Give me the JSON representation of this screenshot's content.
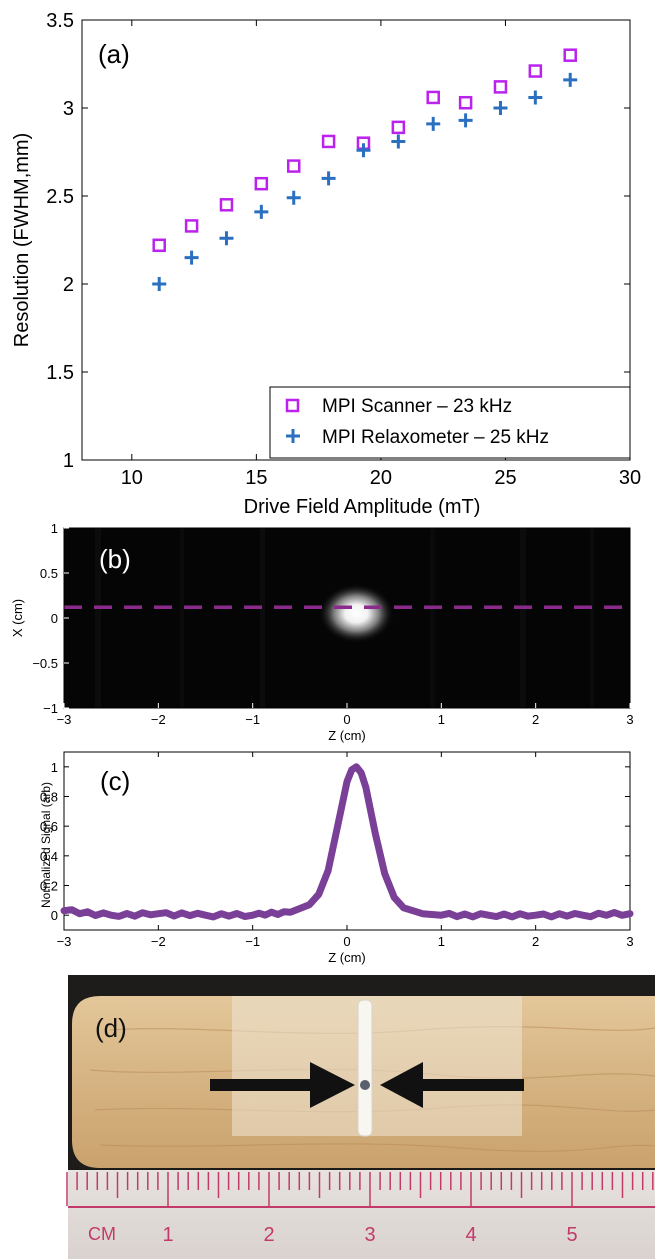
{
  "chart_data": [
    {
      "panel": "(a)",
      "type": "scatter",
      "xlabel": "Drive Field Amplitude (mT)",
      "ylabel": "Resolution (FWHM,mm)",
      "xlim": [
        8,
        30
      ],
      "ylim": [
        1,
        3.5
      ],
      "x_ticks": [
        "10",
        "15",
        "20",
        "25",
        "30"
      ],
      "y_ticks": [
        "1",
        "1.5",
        "2",
        "2.5",
        "3",
        "3.5"
      ],
      "legend_position": "bottom-right",
      "series": [
        {
          "name": "MPI Scanner – 23 kHz",
          "marker": "square",
          "color": "#bb22ee",
          "x": [
            11.1,
            12.4,
            13.8,
            15.2,
            16.5,
            17.9,
            19.3,
            20.7,
            22.1,
            23.4,
            24.8,
            26.2,
            27.6
          ],
          "y": [
            2.22,
            2.33,
            2.45,
            2.57,
            2.67,
            2.81,
            2.8,
            2.89,
            3.06,
            3.03,
            3.12,
            3.21,
            3.3
          ]
        },
        {
          "name": "MPI Relaxometer – 25 kHz",
          "marker": "plus",
          "color": "#2a6fc0",
          "x": [
            11.1,
            12.4,
            13.8,
            15.2,
            16.5,
            17.9,
            19.3,
            20.7,
            22.1,
            23.4,
            24.8,
            26.2,
            27.6
          ],
          "y": [
            2.0,
            2.15,
            2.26,
            2.41,
            2.49,
            2.6,
            2.76,
            2.81,
            2.91,
            2.93,
            3.0,
            3.06,
            3.16
          ]
        }
      ]
    },
    {
      "panel": "(b)",
      "type": "heatmap",
      "xlabel": "Z (cm)",
      "ylabel": "X (cm)",
      "xlim": [
        -3,
        3
      ],
      "ylim": [
        -1,
        1
      ],
      "x_ticks": [
        "-3",
        "-2",
        "-1",
        "0",
        "1",
        "2",
        "3"
      ],
      "y_ticks": [
        "-1",
        "-0.5",
        "0",
        "0.5",
        "1"
      ],
      "hotspot": {
        "z": 0.1,
        "x": 0.05
      },
      "line_profile_x": 0.12,
      "line_color": "#8a2a8a"
    },
    {
      "panel": "(c)",
      "type": "line",
      "xlabel": "Z (cm)",
      "ylabel": "Normalized Signal (arb)",
      "xlim": [
        -3,
        3
      ],
      "ylim": [
        -0.1,
        1.1
      ],
      "x_ticks": [
        "-3",
        "-2",
        "-1",
        "0",
        "1",
        "2",
        "3"
      ],
      "y_ticks": [
        "0",
        "0.2",
        "0.4",
        "0.6",
        "0.8",
        "1"
      ],
      "color": "#7a3f96",
      "series": [
        {
          "x": [
            -3.0,
            -2.5,
            -2.0,
            -1.5,
            -1.0,
            -0.6,
            -0.4,
            -0.3,
            -0.2,
            -0.1,
            0.0,
            0.05,
            0.1,
            0.15,
            0.2,
            0.3,
            0.4,
            0.5,
            0.6,
            0.8,
            1.0,
            1.5,
            2.0,
            2.5,
            3.0
          ],
          "y": [
            0.03,
            0.0,
            0.01,
            0.0,
            0.0,
            0.02,
            0.07,
            0.14,
            0.3,
            0.6,
            0.9,
            0.98,
            1.0,
            0.96,
            0.86,
            0.55,
            0.28,
            0.12,
            0.05,
            0.01,
            0.0,
            0.0,
            0.0,
            0.0,
            0.01
          ]
        }
      ]
    }
  ],
  "photo": {
    "panel_label": "(d)",
    "ruler_unit": "CM",
    "ruler_numbers": [
      "1",
      "2",
      "3",
      "4",
      "5"
    ]
  }
}
